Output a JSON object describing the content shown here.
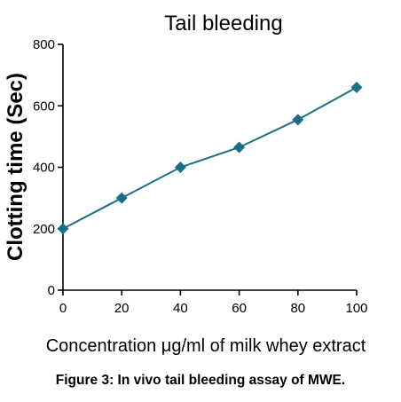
{
  "chart_data": {
    "type": "line",
    "title": "Tail bleeding",
    "xlabel": "Concentration μg/ml of milk whey extract",
    "ylabel": "Clotting time (Sec)",
    "x": [
      0,
      20,
      40,
      60,
      80,
      100
    ],
    "series": [
      {
        "values": [
          200,
          300,
          400,
          465,
          555,
          660
        ]
      }
    ],
    "xlim": [
      0,
      100
    ],
    "ylim": [
      0,
      800
    ],
    "xticks": [
      "0",
      "20",
      "40",
      "60",
      "80",
      "100"
    ],
    "yticks": [
      "0",
      "200",
      "400",
      "600",
      "800"
    ],
    "grid": false,
    "line_color": "#1a6f87",
    "marker_color": "#1a6f87",
    "marker": "diamond"
  },
  "caption": "Figure 3: In vivo tail bleeding assay of MWE."
}
